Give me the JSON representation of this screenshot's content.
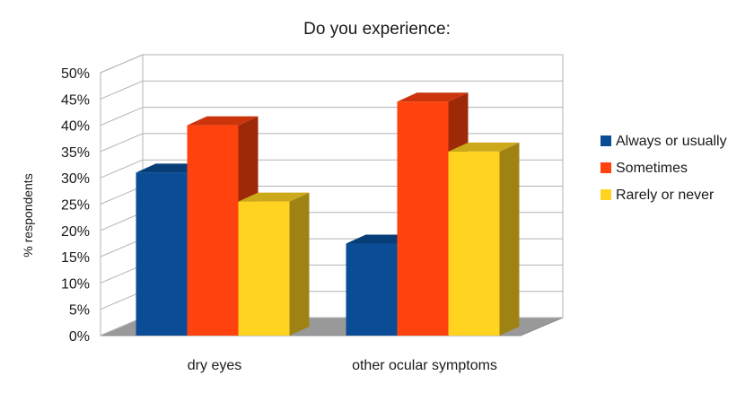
{
  "chart_data": {
    "type": "bar",
    "title": "Do you experience:",
    "xlabel": "",
    "ylabel": "% respondents",
    "categories": [
      "dry eyes",
      "other ocular symptoms"
    ],
    "series": [
      {
        "name": "Always or usually",
        "values": [
          31,
          17.5
        ],
        "color": "#0a4d96"
      },
      {
        "name": "Sometimes",
        "values": [
          40,
          44.5
        ],
        "color": "#ff420e"
      },
      {
        "name": "Rarely or never",
        "values": [
          25.5,
          35
        ],
        "color": "#ffd320"
      }
    ],
    "ylim": [
      0,
      50
    ],
    "ytick_step": 5,
    "ytick_labels": [
      "0%",
      "5%",
      "10%",
      "15%",
      "20%",
      "25%",
      "30%",
      "35%",
      "40%",
      "45%",
      "50%"
    ],
    "grid": true,
    "legend": "right",
    "three_d": true
  }
}
